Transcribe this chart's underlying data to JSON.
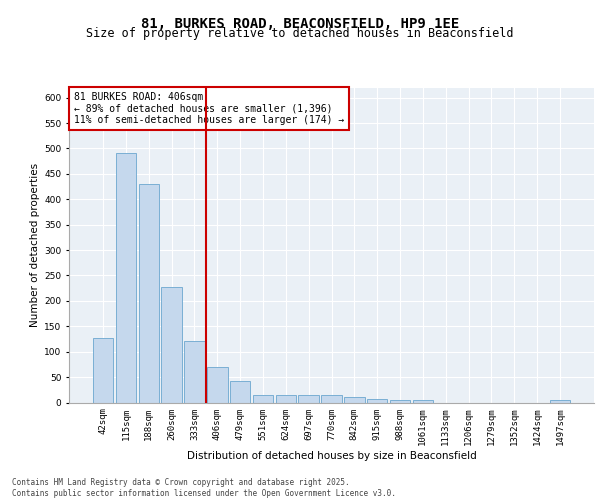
{
  "title_line1": "81, BURKES ROAD, BEACONSFIELD, HP9 1EE",
  "title_line2": "Size of property relative to detached houses in Beaconsfield",
  "xlabel": "Distribution of detached houses by size in Beaconsfield",
  "ylabel": "Number of detached properties",
  "categories": [
    "42sqm",
    "115sqm",
    "188sqm",
    "260sqm",
    "333sqm",
    "406sqm",
    "479sqm",
    "551sqm",
    "624sqm",
    "697sqm",
    "770sqm",
    "842sqm",
    "915sqm",
    "988sqm",
    "1061sqm",
    "1133sqm",
    "1206sqm",
    "1279sqm",
    "1352sqm",
    "1424sqm",
    "1497sqm"
  ],
  "values": [
    127,
    491,
    430,
    228,
    122,
    69,
    43,
    15,
    14,
    15,
    14,
    11,
    6,
    4,
    4,
    0,
    0,
    0,
    0,
    0,
    4
  ],
  "bar_color": "#c5d8ed",
  "bar_edge_color": "#7aafd4",
  "highlight_line_index": 5,
  "highlight_line_color": "#cc0000",
  "annotation_text": "81 BURKES ROAD: 406sqm\n← 89% of detached houses are smaller (1,396)\n11% of semi-detached houses are larger (174) →",
  "annotation_box_edge_color": "#cc0000",
  "background_color": "#eaf0f6",
  "grid_color": "#ffffff",
  "ylim": [
    0,
    620
  ],
  "yticks": [
    0,
    50,
    100,
    150,
    200,
    250,
    300,
    350,
    400,
    450,
    500,
    550,
    600
  ],
  "footer_text": "Contains HM Land Registry data © Crown copyright and database right 2025.\nContains public sector information licensed under the Open Government Licence v3.0.",
  "title_fontsize": 10,
  "subtitle_fontsize": 8.5,
  "axis_label_fontsize": 7.5,
  "tick_fontsize": 6.5,
  "annotation_fontsize": 7,
  "footer_fontsize": 5.5
}
